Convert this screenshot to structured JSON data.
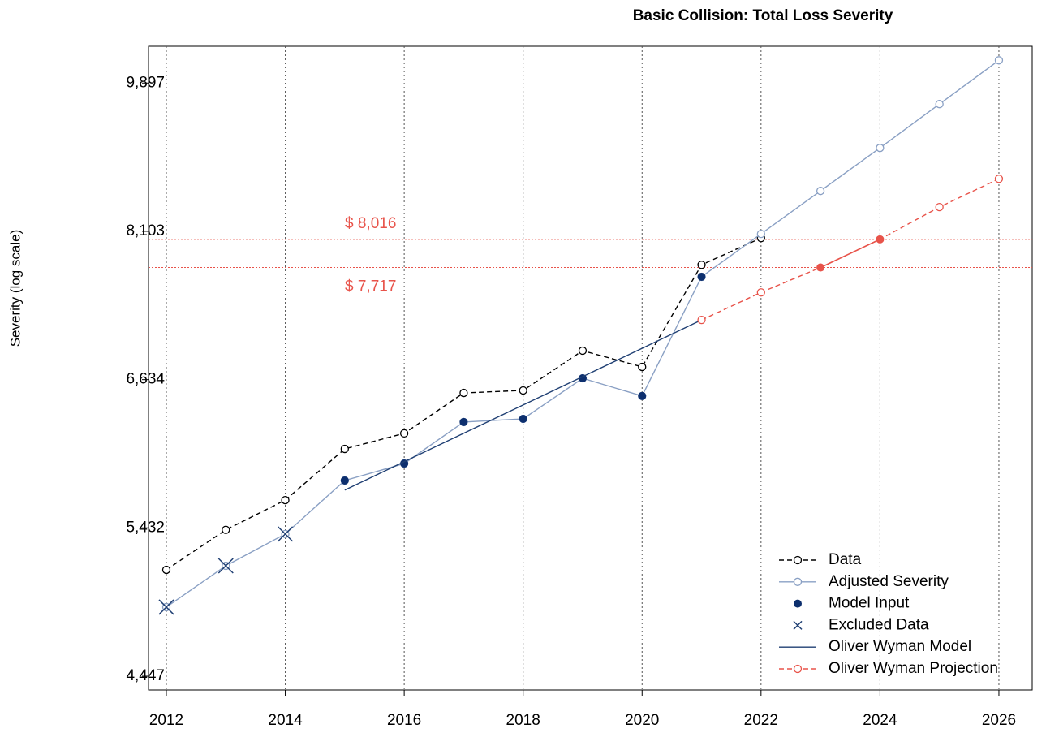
{
  "chart_data": {
    "type": "line",
    "title": "Basic Collision: Total Loss Severity",
    "y_label": "Severity (log scale)",
    "log_y": true,
    "x": [
      2012,
      2013,
      2014,
      2015,
      2016,
      2017,
      2018,
      2019,
      2020,
      2021,
      2022,
      2023,
      2024,
      2025,
      2026
    ],
    "xlim": [
      2011.7,
      2026.56
    ],
    "xticks": [
      2012,
      2014,
      2016,
      2018,
      2020,
      2022,
      2024,
      2026
    ],
    "ylim": [
      4365,
      10400
    ],
    "yticks": [
      {
        "value": 4447,
        "label": "4,447"
      },
      {
        "value": 5432,
        "label": "5,432"
      },
      {
        "value": 6634,
        "label": "6,634"
      },
      {
        "value": 8103,
        "label": "8,103"
      },
      {
        "value": 9897,
        "label": "9,897"
      }
    ],
    "grid": "x",
    "legend": "bottomright",
    "reference_lines": [
      {
        "value": 8016,
        "label": "$ 8,016",
        "color": "#e8534a"
      },
      {
        "value": 7717,
        "label": "$ 7,717",
        "color": "#e8534a"
      }
    ],
    "series": [
      {
        "name": "Data",
        "color": "#000000",
        "line": "dashed",
        "marker": "open-circle",
        "values": [
          5133,
          5417,
          5639,
          6042,
          6170,
          6516,
          6538,
          6898,
          6749,
          7745,
          8030,
          null,
          null,
          null,
          null
        ]
      },
      {
        "name": "Adjusted Severity",
        "color": "#8aa0c4",
        "line": "solid",
        "marker": "open-circle",
        "values": [
          4881,
          5161,
          5387,
          5790,
          5924,
          6265,
          6292,
          6646,
          6489,
          7621,
          8075,
          8557,
          9068,
          9620,
          10205
        ]
      },
      {
        "name": "Model Input",
        "color": "#0d2f6e",
        "line": "none",
        "marker": "filled-circle",
        "values": [
          null,
          null,
          null,
          5790,
          5924,
          6265,
          6292,
          6646,
          6489,
          7621,
          null,
          null,
          null,
          null,
          null
        ]
      },
      {
        "name": "Excluded Data",
        "color": "#1f3f73",
        "line": "none",
        "marker": "x",
        "values": [
          4881,
          5161,
          5387,
          null,
          null,
          null,
          null,
          null,
          null,
          null,
          null,
          null,
          null,
          null,
          null
        ]
      },
      {
        "name": "Oliver Wyman Model",
        "color": "#1f3f73",
        "line": "solid",
        "marker": "none",
        "values": [
          null,
          null,
          null,
          5716,
          5939,
          6171,
          6411,
          6661,
          6920,
          7190,
          null,
          null,
          null,
          null,
          null
        ]
      },
      {
        "name": "Oliver Wyman Projection",
        "color": "#e8534a",
        "line": "dashed",
        "marker": "open-circle",
        "highlight": [
          2023,
          2024
        ],
        "values": [
          null,
          null,
          null,
          null,
          null,
          null,
          null,
          null,
          null,
          7190,
          7462,
          7717,
          8016,
          8372,
          8698
        ]
      }
    ]
  }
}
